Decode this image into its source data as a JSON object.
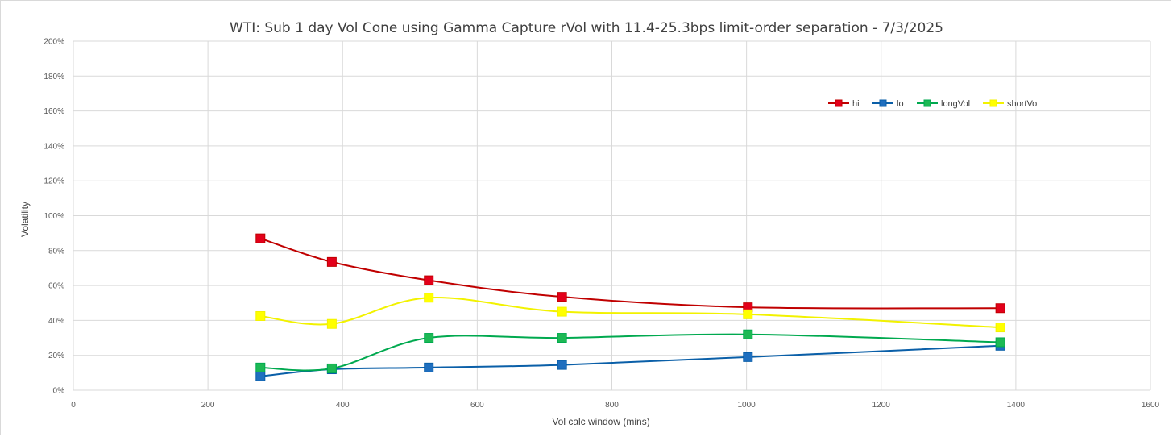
{
  "chart_data": {
    "type": "line",
    "title": "WTI: Sub 1 day Vol Cone using Gamma Capture rVol with 11.4-25.3bps limit-order separation - 7/3/2025",
    "xlabel": "Vol calc window (mins)",
    "ylabel": "Volatility",
    "xlim": [
      0,
      1600
    ],
    "ylim": [
      0,
      200
    ],
    "x_ticks": [
      0,
      200,
      400,
      600,
      800,
      1000,
      1200,
      1400,
      1600
    ],
    "y_ticks": [
      0,
      20,
      40,
      60,
      80,
      100,
      120,
      140,
      160,
      180,
      200
    ],
    "y_tick_suffix": "%",
    "grid": true,
    "legend_position": "top-right",
    "x": [
      278,
      384,
      528,
      726,
      1002,
      1377
    ],
    "series": [
      {
        "name": "hi",
        "color": "#c00000",
        "marker_color": "#e3001b",
        "values": [
          87,
          73.5,
          63,
          53.5,
          47.5,
          47
        ]
      },
      {
        "name": "lo",
        "color": "#0a5fa8",
        "marker_color": "#1f6fbf",
        "values": [
          8,
          12,
          13,
          14.5,
          19,
          25.5
        ]
      },
      {
        "name": "longVol",
        "color": "#00a94f",
        "marker_color": "#1db954",
        "values": [
          13,
          12.5,
          30,
          30,
          32,
          27.5
        ]
      },
      {
        "name": "shortVol",
        "color": "#f2f200",
        "marker_color": "#ffff00",
        "values": [
          42.5,
          38,
          53,
          45,
          43.5,
          36
        ]
      }
    ]
  }
}
